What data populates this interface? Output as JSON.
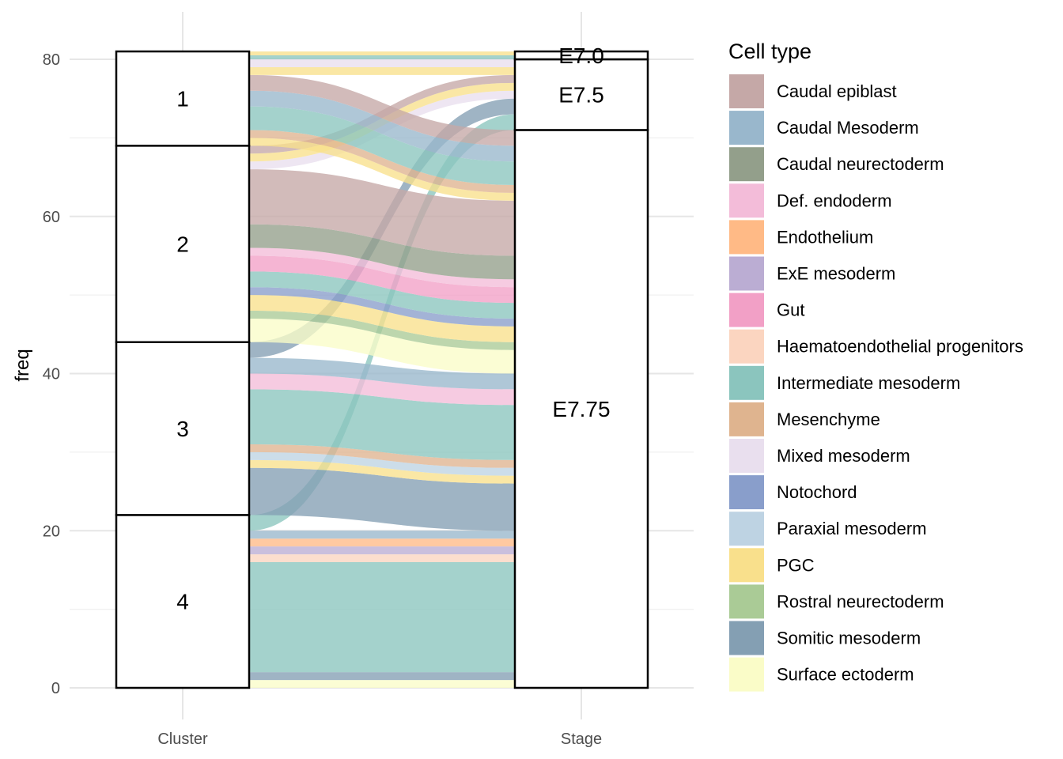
{
  "chart_data": {
    "type": "alluvial",
    "title": "",
    "xlabel": "",
    "ylabel": "freq",
    "ylim": [
      0,
      83
    ],
    "y_ticks": [
      0,
      20,
      40,
      60,
      80
    ],
    "axes": [
      "Cluster",
      "Stage"
    ],
    "strata": {
      "Cluster": [
        "4",
        "3",
        "2",
        "1"
      ],
      "Stage": [
        "E7.75",
        "E7.5",
        "E7.0"
      ]
    },
    "legend": {
      "title": "Cell type",
      "position": "right",
      "items": [
        {
          "name": "Caudal epiblast",
          "color": "#C5A8A7"
        },
        {
          "name": "Caudal Mesoderm",
          "color": "#99B7CC"
        },
        {
          "name": "Caudal neurectoderm",
          "color": "#939F8B"
        },
        {
          "name": "Def. endoderm",
          "color": "#F3BCD9"
        },
        {
          "name": "Endothelium",
          "color": "#FFBA86"
        },
        {
          "name": "ExE mesoderm",
          "color": "#BBADD3"
        },
        {
          "name": "Gut",
          "color": "#F2A0C6"
        },
        {
          "name": "Haematoendothelial progenitors",
          "color": "#FBD5C0"
        },
        {
          "name": "Intermediate mesoderm",
          "color": "#8BC5BE"
        },
        {
          "name": "Mesenchyme",
          "color": "#DFB48F"
        },
        {
          "name": "Mixed mesoderm",
          "color": "#E9DFEE"
        },
        {
          "name": "Notochord",
          "color": "#899ECB"
        },
        {
          "name": "Paraxial mesoderm",
          "color": "#BED3E3"
        },
        {
          "name": "PGC",
          "color": "#F9E08C"
        },
        {
          "name": "Rostral neurectoderm",
          "color": "#AACB96"
        },
        {
          "name": "Somitic mesoderm",
          "color": "#849FB3"
        },
        {
          "name": "Surface ectoderm",
          "color": "#FAFCC8"
        }
      ]
    },
    "flows": [
      {
        "cluster": "4",
        "stage": "E7.75",
        "cell_type": "Surface ectoderm",
        "freq": 1
      },
      {
        "cluster": "4",
        "stage": "E7.75",
        "cell_type": "Somitic mesoderm",
        "freq": 1
      },
      {
        "cluster": "4",
        "stage": "E7.75",
        "cell_type": "Intermediate mesoderm",
        "freq": 14
      },
      {
        "cluster": "4",
        "stage": "E7.75",
        "cell_type": "Haematoendothelial progenitors",
        "freq": 1
      },
      {
        "cluster": "4",
        "stage": "E7.75",
        "cell_type": "ExE mesoderm",
        "freq": 1
      },
      {
        "cluster": "4",
        "stage": "E7.75",
        "cell_type": "Endothelium",
        "freq": 1
      },
      {
        "cluster": "4",
        "stage": "E7.75",
        "cell_type": "Caudal Mesoderm",
        "freq": 1
      },
      {
        "cluster": "4",
        "stage": "E7.5",
        "cell_type": "Intermediate mesoderm",
        "freq": 2
      },
      {
        "cluster": "3",
        "stage": "E7.75",
        "cell_type": "Somitic mesoderm",
        "freq": 6
      },
      {
        "cluster": "3",
        "stage": "E7.75",
        "cell_type": "PGC",
        "freq": 1
      },
      {
        "cluster": "3",
        "stage": "E7.75",
        "cell_type": "Paraxial mesoderm",
        "freq": 1
      },
      {
        "cluster": "3",
        "stage": "E7.75",
        "cell_type": "Mesenchyme",
        "freq": 1
      },
      {
        "cluster": "3",
        "stage": "E7.75",
        "cell_type": "Intermediate mesoderm",
        "freq": 7
      },
      {
        "cluster": "3",
        "stage": "E7.75",
        "cell_type": "Def. endoderm",
        "freq": 2
      },
      {
        "cluster": "3",
        "stage": "E7.75",
        "cell_type": "Caudal Mesoderm",
        "freq": 2
      },
      {
        "cluster": "3",
        "stage": "E7.5",
        "cell_type": "Somitic mesoderm",
        "freq": 2
      },
      {
        "cluster": "2",
        "stage": "E7.75",
        "cell_type": "Surface ectoderm",
        "freq": 3
      },
      {
        "cluster": "2",
        "stage": "E7.75",
        "cell_type": "Rostral neurectoderm",
        "freq": 1
      },
      {
        "cluster": "2",
        "stage": "E7.75",
        "cell_type": "PGC",
        "freq": 2
      },
      {
        "cluster": "2",
        "stage": "E7.75",
        "cell_type": "Notochord",
        "freq": 1
      },
      {
        "cluster": "2",
        "stage": "E7.75",
        "cell_type": "Intermediate mesoderm",
        "freq": 2
      },
      {
        "cluster": "2",
        "stage": "E7.75",
        "cell_type": "Gut",
        "freq": 2
      },
      {
        "cluster": "2",
        "stage": "E7.75",
        "cell_type": "Def. endoderm",
        "freq": 1
      },
      {
        "cluster": "2",
        "stage": "E7.75",
        "cell_type": "Caudal neurectoderm",
        "freq": 3
      },
      {
        "cluster": "2",
        "stage": "E7.75",
        "cell_type": "Caudal epiblast",
        "freq": 7
      },
      {
        "cluster": "2",
        "stage": "E7.5",
        "cell_type": "Mixed mesoderm",
        "freq": 1
      },
      {
        "cluster": "2",
        "stage": "E7.5",
        "cell_type": "PGC",
        "freq": 1
      },
      {
        "cluster": "2",
        "stage": "E7.5",
        "cell_type": "Caudal epiblast",
        "freq": 1
      },
      {
        "cluster": "1",
        "stage": "E7.75",
        "cell_type": "PGC",
        "freq": 1
      },
      {
        "cluster": "1",
        "stage": "E7.75",
        "cell_type": "Mesenchyme",
        "freq": 1
      },
      {
        "cluster": "1",
        "stage": "E7.75",
        "cell_type": "Intermediate mesoderm",
        "freq": 3
      },
      {
        "cluster": "1",
        "stage": "E7.75",
        "cell_type": "Caudal Mesoderm",
        "freq": 2
      },
      {
        "cluster": "1",
        "stage": "E7.75",
        "cell_type": "Caudal epiblast",
        "freq": 2
      },
      {
        "cluster": "1",
        "stage": "E7.5",
        "cell_type": "PGC",
        "freq": 1
      },
      {
        "cluster": "1",
        "stage": "E7.5",
        "cell_type": "Mixed mesoderm",
        "freq": 1
      },
      {
        "cluster": "1",
        "stage": "E7.0",
        "cell_type": "Intermediate mesoderm",
        "freq": 0.5
      },
      {
        "cluster": "1",
        "stage": "E7.0",
        "cell_type": "PGC",
        "freq": 0.5
      }
    ]
  }
}
